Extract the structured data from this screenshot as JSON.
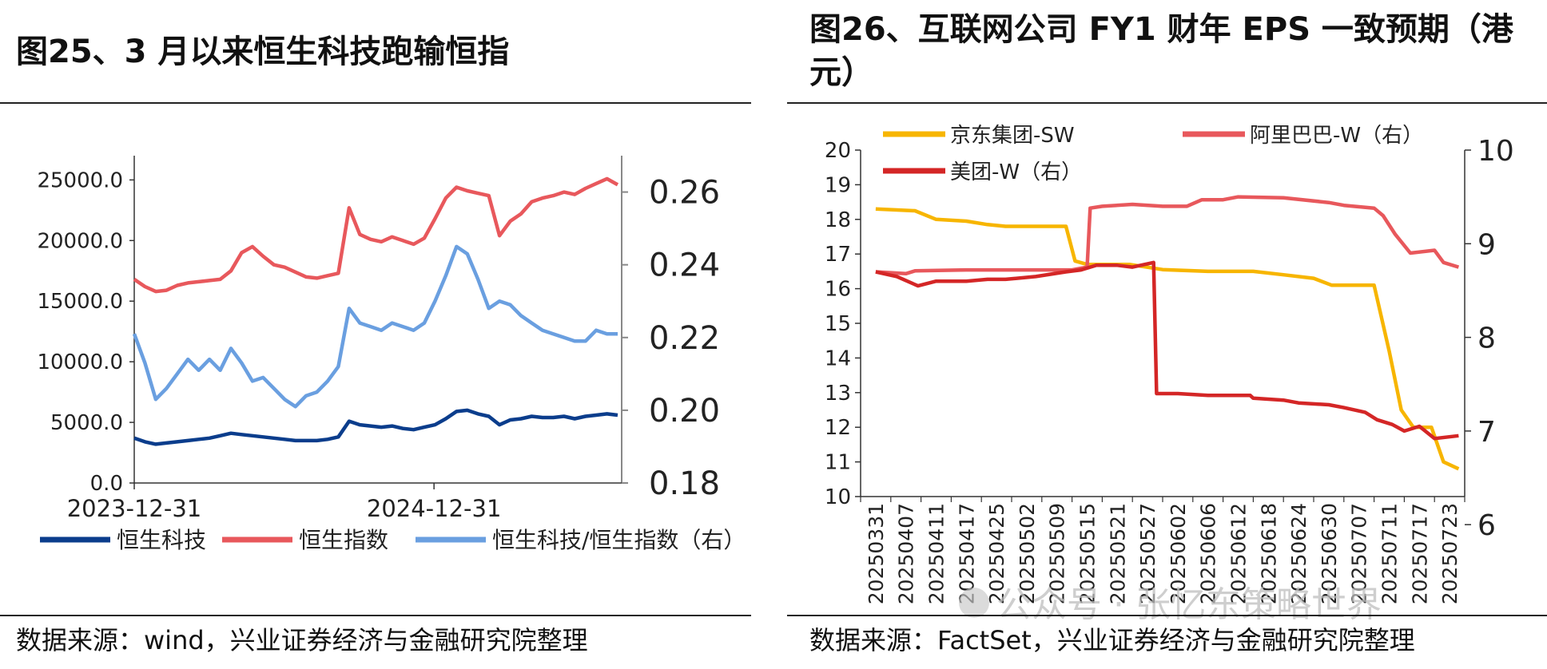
{
  "left": {
    "title": "图25、3 月以来恒生科技跑输恒指",
    "source": "数据来源：wind，兴业证券经济与金融研究院整理",
    "chart_data": {
      "type": "line",
      "x_ticks": [
        "2023-12-31",
        "2024-12-31"
      ],
      "y_left": {
        "ticks": [
          "25000.0",
          "20000.0",
          "15000.0",
          "10000.0",
          "5000.0",
          "0.0"
        ],
        "ylim": [
          0,
          27000
        ]
      },
      "y_right": {
        "ticks": [
          "0.26",
          "0.24",
          "0.22",
          "0.20",
          "0.18"
        ],
        "ylim": [
          0.18,
          0.27
        ]
      },
      "legend": [
        "恒生科技",
        "恒生指数",
        "恒生科技/恒生指数（右）"
      ],
      "series": [
        {
          "name": "恒生科技",
          "axis": "left",
          "color": "#0b3d8c",
          "values": [
            3700,
            3400,
            3200,
            3300,
            3400,
            3500,
            3600,
            3700,
            3900,
            4100,
            4000,
            3900,
            3800,
            3700,
            3600,
            3500,
            3500,
            3500,
            3600,
            3800,
            5100,
            4800,
            4700,
            4600,
            4700,
            4500,
            4400,
            4600,
            4800,
            5300,
            5900,
            6000,
            5700,
            5500,
            4800,
            5200,
            5300,
            5500,
            5400,
            5400,
            5500,
            5300,
            5500,
            5600,
            5700,
            5600
          ]
        },
        {
          "name": "恒生指数",
          "axis": "left",
          "color": "#e8585c",
          "values": [
            16800,
            16200,
            15800,
            15900,
            16300,
            16500,
            16600,
            16700,
            16800,
            17500,
            19000,
            19500,
            18700,
            18000,
            17800,
            17400,
            17000,
            16900,
            17100,
            17300,
            22700,
            20500,
            20100,
            19900,
            20300,
            20000,
            19700,
            20200,
            21800,
            23500,
            24400,
            24100,
            23900,
            23700,
            20400,
            21600,
            22200,
            23200,
            23500,
            23700,
            24000,
            23800,
            24300,
            24700,
            25100,
            24600
          ]
        },
        {
          "name": "恒生科技/恒生指数（右）",
          "axis": "right",
          "color": "#6a9fe0",
          "values": [
            0.221,
            0.213,
            0.203,
            0.206,
            0.21,
            0.214,
            0.211,
            0.214,
            0.211,
            0.217,
            0.213,
            0.208,
            0.209,
            0.206,
            0.203,
            0.201,
            0.204,
            0.205,
            0.208,
            0.212,
            0.228,
            0.224,
            0.223,
            0.222,
            0.224,
            0.223,
            0.222,
            0.224,
            0.23,
            0.237,
            0.245,
            0.243,
            0.236,
            0.228,
            0.23,
            0.229,
            0.226,
            0.224,
            0.222,
            0.221,
            0.22,
            0.219,
            0.219,
            0.222,
            0.221,
            0.221
          ]
        }
      ]
    }
  },
  "right": {
    "title": "图26、互联网公司 FY1 财年 EPS 一致预期（港元）",
    "source": "数据来源：FactSet，兴业证券经济与金融研究院整理",
    "watermark": "公众号 · 张忆东策略世界",
    "chart_data": {
      "type": "line",
      "categories": [
        "20250331",
        "20250407",
        "20250411",
        "20250417",
        "20250425",
        "20250502",
        "20250509",
        "20250515",
        "20250521",
        "20250527",
        "20250602",
        "20250606",
        "20250612",
        "20250618",
        "20250624",
        "20250630",
        "20250707",
        "20250711",
        "20250717",
        "20250723"
      ],
      "y_left": {
        "ticks": [
          "20",
          "19",
          "18",
          "17",
          "16",
          "15",
          "14",
          "13",
          "12",
          "11",
          "10"
        ],
        "ylim": [
          10,
          20
        ]
      },
      "y_right": {
        "ticks": [
          "10",
          "9",
          "8",
          "7",
          "6"
        ],
        "ylim": [
          6.3,
          10
        ]
      },
      "legend": [
        "京东集团-SW",
        "阿里巴巴-W（右）",
        "美团-W（右）"
      ],
      "series": [
        {
          "name": "京东集团-SW",
          "axis": "left",
          "color": "#f7b500",
          "points": [
            [
              0,
              18.3
            ],
            [
              1.3,
              18.25
            ],
            [
              2,
              18.0
            ],
            [
              3,
              17.95
            ],
            [
              3.7,
              17.85
            ],
            [
              4.3,
              17.8
            ],
            [
              5.3,
              17.8
            ],
            [
              6.3,
              17.8
            ],
            [
              6.6,
              16.8
            ],
            [
              7,
              16.7
            ],
            [
              8.4,
              16.7
            ],
            [
              9.5,
              16.55
            ],
            [
              11,
              16.5
            ],
            [
              12.5,
              16.5
            ],
            [
              13.5,
              16.4
            ],
            [
              14.5,
              16.3
            ],
            [
              15.1,
              16.1
            ],
            [
              16.5,
              16.1
            ],
            [
              17,
              14.2
            ],
            [
              17.4,
              12.5
            ],
            [
              17.8,
              12.0
            ],
            [
              18.4,
              12.0
            ],
            [
              18.8,
              11.0
            ],
            [
              19.3,
              10.8
            ]
          ]
        },
        {
          "name": "阿里巴巴-W（右）",
          "axis": "right",
          "color": "#e8585c",
          "points": [
            [
              0,
              8.7
            ],
            [
              1,
              8.68
            ],
            [
              1.3,
              8.71
            ],
            [
              3,
              8.72
            ],
            [
              5,
              8.72
            ],
            [
              6.5,
              8.72
            ],
            [
              7.0,
              8.75
            ],
            [
              7.1,
              9.38
            ],
            [
              7.5,
              9.4
            ],
            [
              8.5,
              9.42
            ],
            [
              9.5,
              9.4
            ],
            [
              10.3,
              9.4
            ],
            [
              10.8,
              9.47
            ],
            [
              11.5,
              9.47
            ],
            [
              12,
              9.5
            ],
            [
              13.5,
              9.49
            ],
            [
              15,
              9.44
            ],
            [
              15.5,
              9.41
            ],
            [
              16.5,
              9.38
            ],
            [
              16.8,
              9.3
            ],
            [
              17.2,
              9.1
            ],
            [
              17.7,
              8.9
            ],
            [
              18.5,
              8.93
            ],
            [
              18.8,
              8.8
            ],
            [
              19.3,
              8.75
            ]
          ]
        },
        {
          "name": "美团-W（右）",
          "axis": "right",
          "color": "#d42626",
          "points": [
            [
              0,
              8.7
            ],
            [
              0.7,
              8.65
            ],
            [
              1.4,
              8.55
            ],
            [
              2,
              8.6
            ],
            [
              3,
              8.6
            ],
            [
              3.7,
              8.62
            ],
            [
              4.3,
              8.62
            ],
            [
              5.3,
              8.65
            ],
            [
              6.3,
              8.7
            ],
            [
              6.8,
              8.72
            ],
            [
              7.3,
              8.77
            ],
            [
              8,
              8.77
            ],
            [
              8.5,
              8.75
            ],
            [
              9.2,
              8.8
            ],
            [
              9.3,
              7.4
            ],
            [
              10,
              7.4
            ],
            [
              11,
              7.38
            ],
            [
              12.4,
              7.38
            ],
            [
              12.5,
              7.35
            ],
            [
              13.5,
              7.33
            ],
            [
              14,
              7.3
            ],
            [
              15,
              7.28
            ],
            [
              15.5,
              7.25
            ],
            [
              16.2,
              7.2
            ],
            [
              16.6,
              7.12
            ],
            [
              17.1,
              7.07
            ],
            [
              17.5,
              7.0
            ],
            [
              18,
              7.05
            ],
            [
              18.5,
              6.92
            ],
            [
              19.3,
              6.95
            ]
          ]
        }
      ]
    }
  }
}
